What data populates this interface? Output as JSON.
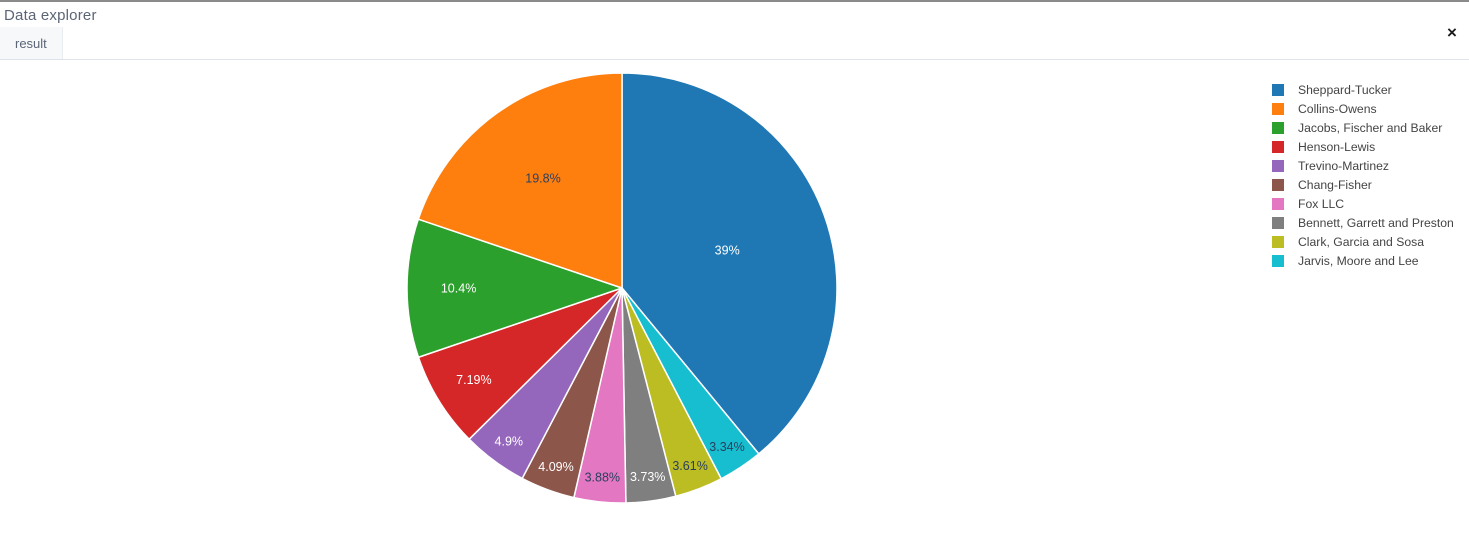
{
  "window": {
    "title": "Data explorer",
    "close_label": "×"
  },
  "tabs": [
    {
      "label": "result",
      "active": true
    }
  ],
  "chart_data": {
    "type": "pie",
    "title": "",
    "categories": [
      "Sheppard-Tucker",
      "Collins-Owens",
      "Jacobs, Fischer and Baker",
      "Henson-Lewis",
      "Trevino-Martinez",
      "Chang-Fisher",
      "Fox LLC",
      "Bennett, Garrett and Preston",
      "Clark, Garcia and Sosa",
      "Jarvis, Moore and Lee"
    ],
    "values": [
      39,
      19.8,
      10.4,
      7.19,
      4.9,
      4.09,
      3.88,
      3.73,
      3.61,
      3.34
    ],
    "value_unit": "percent",
    "slice_labels": [
      "39%",
      "19.8%",
      "10.4%",
      "7.19%",
      "4.9%",
      "4.09%",
      "3.88%",
      "3.73%",
      "3.61%",
      "3.34%"
    ],
    "colors": [
      "#1f77b4",
      "#ff7f0e",
      "#2ca02c",
      "#d62728",
      "#9467bd",
      "#8c564b",
      "#e377c2",
      "#7f7f7f",
      "#bcbd22",
      "#17becf"
    ],
    "slice_label_colors": [
      "#ffffff",
      "#2a3f5f",
      "#ffffff",
      "#ffffff",
      "#ffffff",
      "#ffffff",
      "#2a3f5f",
      "#ffffff",
      "#2a3f5f",
      "#2a3f5f"
    ],
    "legend_position": "right",
    "arrangement": "largest slice clockwise from 12 o'clock, remaining slices counterclockwise in descending size order"
  }
}
